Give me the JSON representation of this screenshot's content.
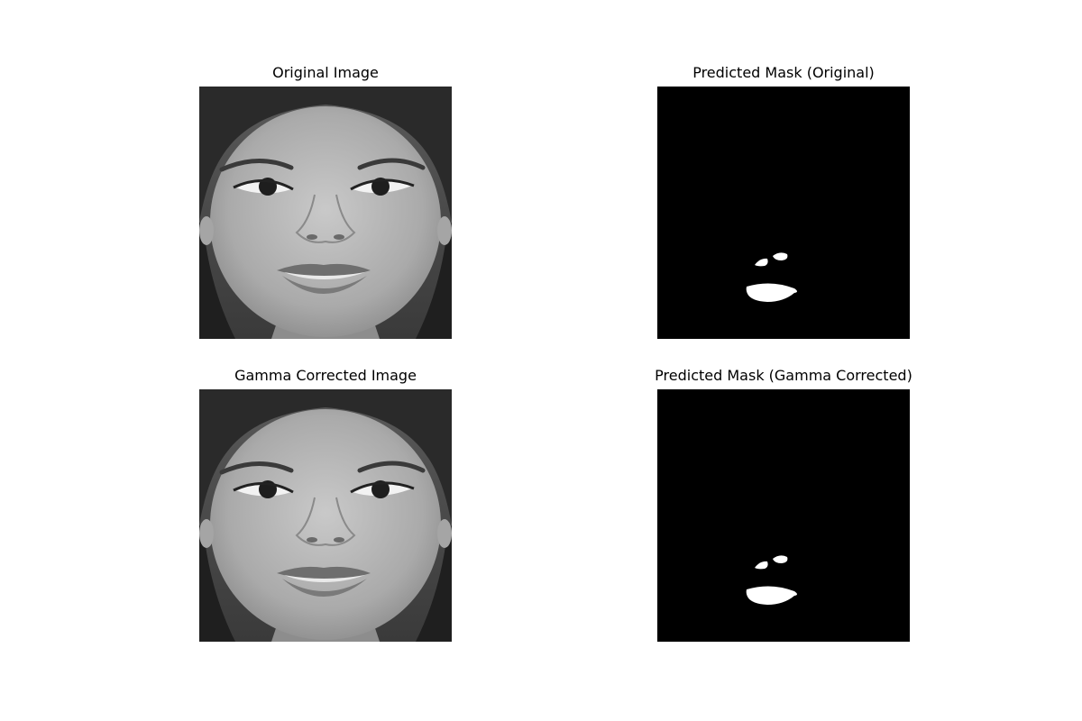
{
  "panels": [
    {
      "title": "Original Image",
      "kind": "face"
    },
    {
      "title": "Predicted Mask (Original)",
      "kind": "mask"
    },
    {
      "title": "Gamma Corrected Image",
      "kind": "face"
    },
    {
      "title": "Predicted Mask (Gamma Corrected)",
      "kind": "mask"
    }
  ],
  "colors": {
    "background": "#ffffff",
    "mask_background": "#000000",
    "mask_foreground": "#ffffff"
  }
}
